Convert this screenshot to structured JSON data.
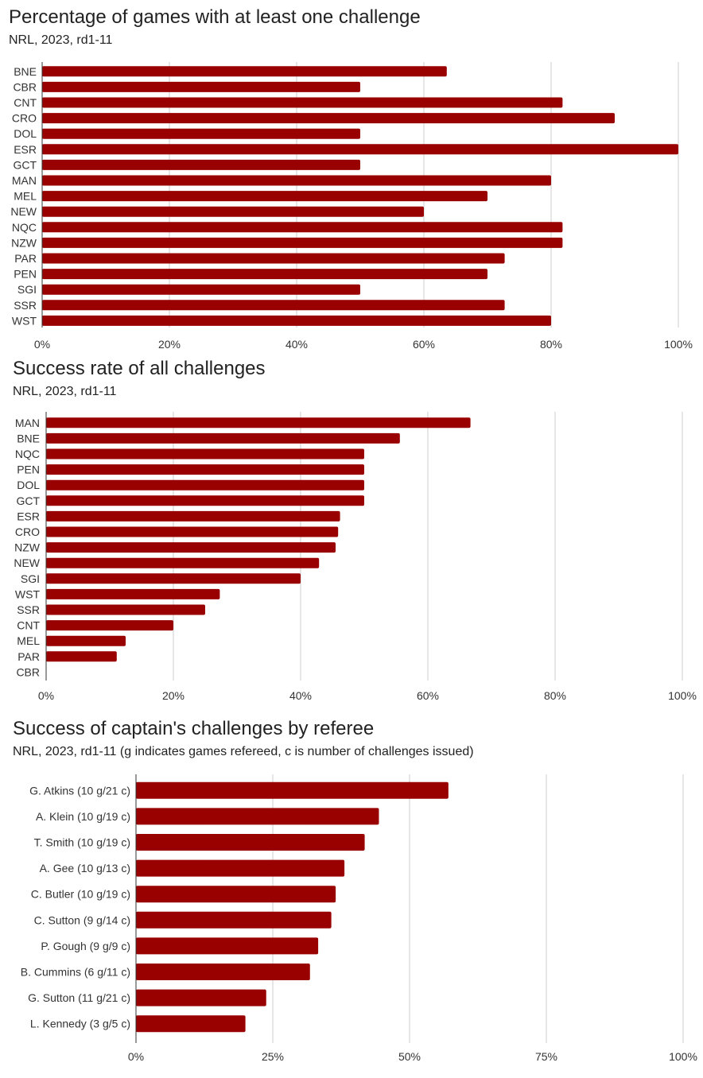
{
  "colors": {
    "bar": "#990000",
    "grid": "#cccccc",
    "axis": "#333333",
    "text": "#333333"
  },
  "chart_data": [
    {
      "type": "bar",
      "orientation": "horizontal",
      "title": "Percentage of games with at least one challenge",
      "subtitle": "NRL, 2023, rd1-11",
      "categories": [
        "BNE",
        "CBR",
        "CNT",
        "CRO",
        "DOL",
        "ESR",
        "GCT",
        "MAN",
        "MEL",
        "NEW",
        "NQC",
        "NZW",
        "PAR",
        "PEN",
        "SGI",
        "SSR",
        "WST"
      ],
      "values": [
        63.6,
        50,
        81.8,
        90,
        50,
        100,
        50,
        80,
        70,
        60,
        81.8,
        81.8,
        72.7,
        70,
        50,
        72.7,
        80
      ],
      "xlim": [
        0,
        100
      ],
      "ticks": [
        "0%",
        "20%",
        "40%",
        "60%",
        "80%",
        "100%"
      ],
      "grid": true
    },
    {
      "type": "bar",
      "orientation": "horizontal",
      "title": "Success rate of all challenges",
      "subtitle": "NRL, 2023, rd1-11",
      "categories": [
        "MAN",
        "BNE",
        "NQC",
        "PEN",
        "DOL",
        "GCT",
        "ESR",
        "CRO",
        "NZW",
        "NEW",
        "SGI",
        "WST",
        "SSR",
        "CNT",
        "MEL",
        "PAR",
        "CBR"
      ],
      "values": [
        66.7,
        55.6,
        50,
        50,
        50,
        50,
        46.2,
        45.9,
        45.5,
        42.9,
        40,
        27.3,
        25,
        20,
        12.5,
        11.1,
        0
      ],
      "xlim": [
        0,
        100
      ],
      "ticks": [
        "0%",
        "20%",
        "40%",
        "60%",
        "80%",
        "100%"
      ],
      "grid": true
    },
    {
      "type": "bar",
      "orientation": "horizontal",
      "title": "Success of captain's challenges by referee",
      "subtitle": "NRL, 2023, rd1-11 (g indicates games refereed, c is number of challenges issued)",
      "categories": [
        "G. Atkins (10 g/21 c)",
        "A. Klein (10 g/19 c)",
        "T. Smith (10 g/19 c)",
        "A. Gee (10 g/13 c)",
        "C. Butler (10 g/19 c)",
        "C. Sutton (9 g/14 c)",
        "P. Gough (9 g/9 c)",
        "B. Cummins (6 g/11 c)",
        "G. Sutton (11 g/21 c)",
        "L. Kennedy (3 g/5 c)"
      ],
      "values": [
        57.1,
        44.4,
        41.8,
        38.1,
        36.5,
        35.7,
        33.3,
        31.8,
        23.8,
        20
      ],
      "xlim": [
        0,
        100
      ],
      "ticks": [
        "0%",
        "25%",
        "50%",
        "75%",
        "100%"
      ],
      "grid": true
    }
  ]
}
